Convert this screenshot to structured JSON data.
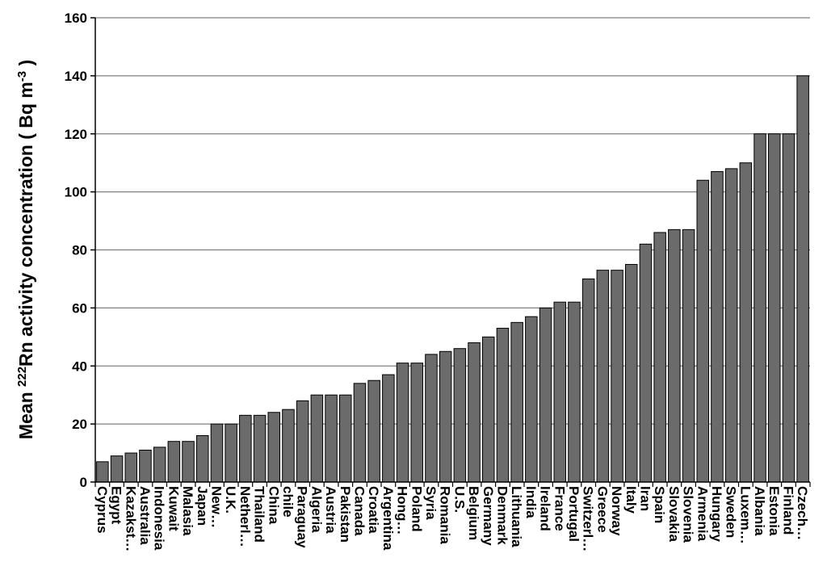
{
  "chart_data": {
    "type": "bar",
    "ylabel": {
      "prefix": "Mean ",
      "superscript": "222",
      "middle": "Rn activity concentration ( Bq  m",
      "unit_superscript": "-3",
      "suffix": " )"
    },
    "xlabel": "",
    "ylim": [
      0,
      160
    ],
    "yticks": [
      0,
      20,
      40,
      60,
      80,
      100,
      120,
      140,
      160
    ],
    "grid": true,
    "legend": "none",
    "colors": {
      "bar": "#6b6b6b",
      "bar_edge": "#000000",
      "grid": "#808080",
      "axis": "#000000"
    },
    "categories": [
      "Cyprus",
      "Egypt",
      "Kazakst…",
      "Australia",
      "Indonesia",
      "Kuwait",
      "Malasia",
      "Japan",
      "New…",
      "U.K.",
      "Netherl…",
      "Thailand",
      "China",
      "chile",
      "Paraguay",
      "Algeria",
      "Austria",
      "Pakistan",
      "Canada",
      "Croatia",
      "Argentina",
      "Hong…",
      "Poland",
      "Syria",
      "Romania",
      "U.S.",
      "Belgium",
      "Germany",
      "Denmark",
      "Lithuania",
      "India",
      "Ireland",
      "France",
      "Portugal",
      "Switzerl…",
      "Greece",
      "Norway",
      "Italy",
      "Iran",
      "Spain",
      "Slovakia",
      "Slovenia",
      "Armenia",
      "Hungary",
      "Sweden",
      "Luxem…",
      "Albania",
      "Estonia",
      "Finland",
      "Czech…"
    ],
    "values": [
      7,
      9,
      10,
      11,
      12,
      14,
      14,
      16,
      20,
      20,
      23,
      23,
      24,
      25,
      28,
      30,
      30,
      30,
      34,
      35,
      37,
      41,
      41,
      44,
      45,
      46,
      48,
      50,
      53,
      55,
      57,
      60,
      62,
      62,
      70,
      73,
      73,
      75,
      82,
      86,
      87,
      87,
      104,
      107,
      108,
      110,
      120,
      120,
      120,
      140
    ]
  }
}
